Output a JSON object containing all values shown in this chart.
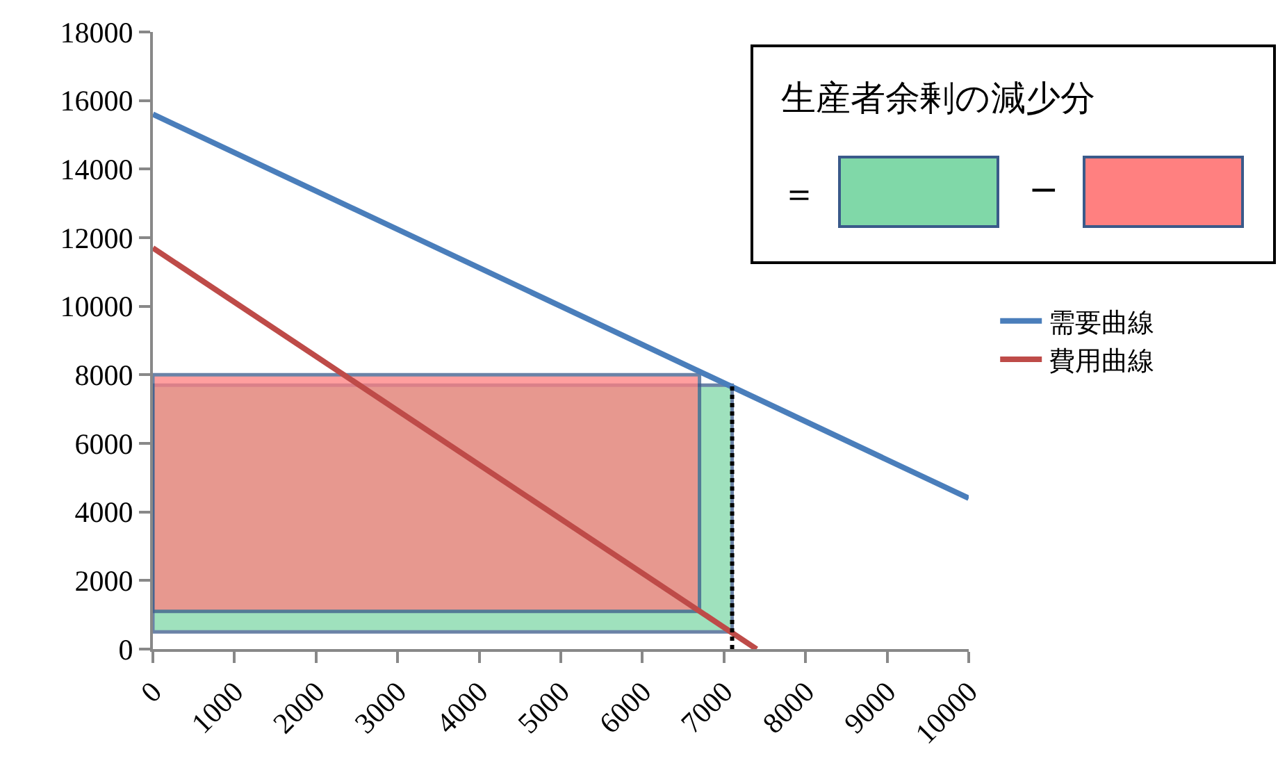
{
  "chart_data": {
    "type": "line",
    "annotations": [
      "生産者余剰の減少分",
      "＝",
      "−"
    ],
    "series": [
      {
        "type": "area",
        "color": "#80d8a8",
        "x": [
          0,
          0,
          7100,
          7100,
          0
        ],
        "values": [
          500,
          7700,
          7700,
          500,
          500
        ]
      },
      {
        "type": "area",
        "color": "#ff8080",
        "x": [
          0,
          0,
          6700,
          6700,
          0
        ],
        "values": [
          1100,
          8000,
          8000,
          1100,
          1100
        ]
      },
      {
        "name": "需要曲線",
        "color": "#4a7ebb",
        "x": [
          0,
          10000
        ],
        "values": [
          15600,
          4400
        ]
      },
      {
        "name": "費用曲線",
        "color": "#be4b48",
        "x": [
          0,
          7400
        ],
        "values": [
          11700,
          0
        ]
      },
      {
        "color": "#000000",
        "line_style": "dotted",
        "x": [
          7100,
          7100
        ],
        "values": [
          0,
          7700
        ]
      }
    ],
    "xlim": [
      0,
      10000
    ],
    "xticks": [
      0,
      1000,
      2000,
      3000,
      4000,
      5000,
      6000,
      7000,
      8000,
      9000,
      10000
    ],
    "ylim": [
      0,
      18000
    ],
    "yticks": [
      0,
      2000,
      4000,
      6000,
      8000,
      10000,
      12000,
      14000,
      16000,
      18000
    ],
    "grid": false,
    "legend": "right",
    "marker": "none"
  }
}
